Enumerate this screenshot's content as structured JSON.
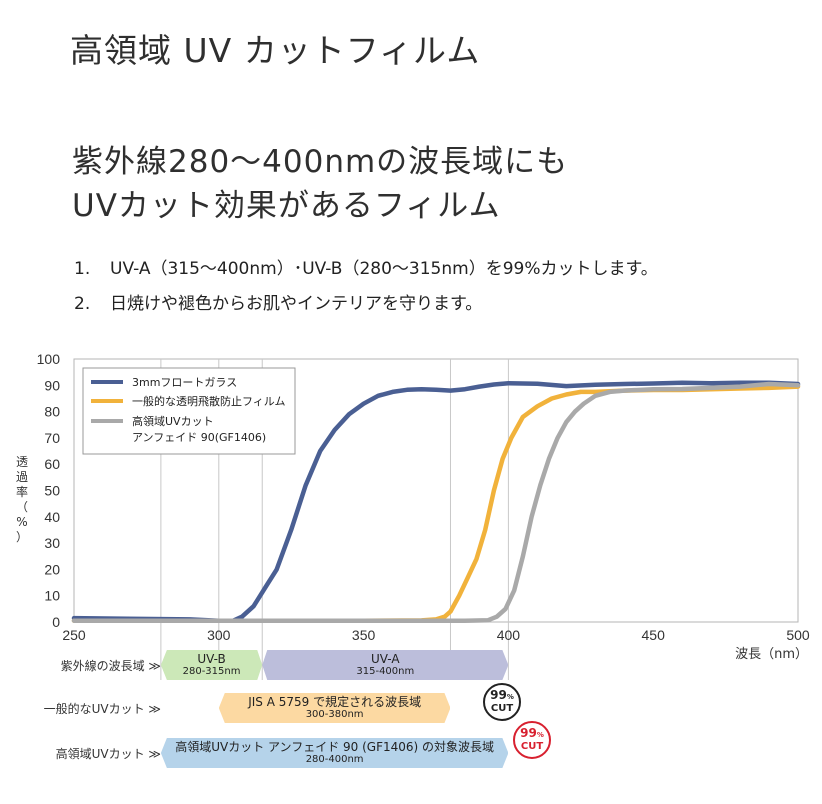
{
  "page": {
    "title": "高領域 UV カットフィルム",
    "subtitle_line1": "紫外線280〜400nmの波長域にも",
    "subtitle_line2": "UVカット効果があるフィルム",
    "points": [
      {
        "num": "1.",
        "text": "UV-A（315〜400nm）･UV-B（280〜315nm）を99%カットします。"
      },
      {
        "num": "2.",
        "text": "日焼けや褪色からお肌やインテリアを守ります。"
      }
    ]
  },
  "chart_data": {
    "type": "line",
    "xlabel": "波長（nm）",
    "ylabel": "透過率（%）",
    "xlim": [
      250,
      500
    ],
    "ylim": [
      0,
      100
    ],
    "x_ticks": [
      250,
      300,
      350,
      400,
      450,
      500
    ],
    "y_ticks": [
      0,
      10,
      20,
      30,
      40,
      50,
      60,
      70,
      80,
      90,
      100
    ],
    "grid": "vertical at 280, 300, 315, 380, 400",
    "legend_position": "top-left",
    "series": [
      {
        "name": "3mmフロートガラス",
        "color": "#4a5f93",
        "points": [
          [
            250,
            1.5
          ],
          [
            290,
            1
          ],
          [
            300,
            0.5
          ],
          [
            305,
            0.5
          ],
          [
            308,
            2
          ],
          [
            312,
            6
          ],
          [
            316,
            13
          ],
          [
            320,
            20
          ],
          [
            325,
            35
          ],
          [
            330,
            52
          ],
          [
            335,
            65
          ],
          [
            340,
            73
          ],
          [
            345,
            79
          ],
          [
            350,
            83
          ],
          [
            355,
            86
          ],
          [
            360,
            87.5
          ],
          [
            365,
            88.3
          ],
          [
            370,
            88.5
          ],
          [
            375,
            88.3
          ],
          [
            380,
            88
          ],
          [
            385,
            88.5
          ],
          [
            390,
            89.5
          ],
          [
            395,
            90.3
          ],
          [
            400,
            90.8
          ],
          [
            410,
            90.6
          ],
          [
            420,
            89.7
          ],
          [
            430,
            90.2
          ],
          [
            440,
            90.5
          ],
          [
            450,
            90.7
          ],
          [
            460,
            91
          ],
          [
            470,
            90.8
          ],
          [
            480,
            91
          ],
          [
            490,
            91
          ],
          [
            500,
            90.5
          ]
        ]
      },
      {
        "name": "一般的な透明飛散防止フィルム",
        "color": "#f1b23b",
        "points": [
          [
            250,
            0.5
          ],
          [
            300,
            0.5
          ],
          [
            350,
            0.5
          ],
          [
            370,
            0.6
          ],
          [
            375,
            1
          ],
          [
            378,
            2
          ],
          [
            380,
            4
          ],
          [
            383,
            10
          ],
          [
            386,
            17
          ],
          [
            389,
            24
          ],
          [
            392,
            35
          ],
          [
            395,
            50
          ],
          [
            398,
            62
          ],
          [
            401,
            70
          ],
          [
            405,
            78
          ],
          [
            410,
            82
          ],
          [
            415,
            85
          ],
          [
            420,
            86.5
          ],
          [
            425,
            87.5
          ],
          [
            430,
            87.5
          ],
          [
            440,
            88
          ],
          [
            450,
            88.2
          ],
          [
            460,
            88.2
          ],
          [
            470,
            88.5
          ],
          [
            480,
            88.8
          ],
          [
            490,
            89
          ],
          [
            500,
            89.5
          ]
        ]
      },
      {
        "name": "高領域UVカット アンフェイド 90(GF1406)",
        "color": "#a9a9a9",
        "points": [
          [
            250,
            0.5
          ],
          [
            300,
            0.5
          ],
          [
            350,
            0.5
          ],
          [
            385,
            0.5
          ],
          [
            393,
            0.7
          ],
          [
            396,
            2
          ],
          [
            399,
            5
          ],
          [
            402,
            12
          ],
          [
            405,
            25
          ],
          [
            408,
            40
          ],
          [
            411,
            52
          ],
          [
            414,
            62
          ],
          [
            417,
            70
          ],
          [
            420,
            76
          ],
          [
            423,
            80
          ],
          [
            426,
            83
          ],
          [
            430,
            86
          ],
          [
            435,
            87.5
          ],
          [
            440,
            88
          ],
          [
            450,
            88.5
          ],
          [
            460,
            88.6
          ],
          [
            470,
            89
          ],
          [
            480,
            89.5
          ],
          [
            490,
            90.5
          ],
          [
            500,
            90
          ]
        ]
      }
    ]
  },
  "bands": {
    "rows": [
      {
        "label": "紫外線の波長域 ≫"
      },
      {
        "label": "一般的なUVカット ≫"
      },
      {
        "label": "高領域UVカット ≫"
      }
    ],
    "uvb": {
      "title": "UV-B",
      "range": "280-315nm",
      "from": 280,
      "to": 315,
      "color": "#cce8b8"
    },
    "uva": {
      "title": "UV-A",
      "range": "315-400nm",
      "from": 315,
      "to": 400,
      "color": "#bcbedb"
    },
    "general": {
      "title": "JIS A 5759 で規定される波長域",
      "range": "300-380nm",
      "from": 300,
      "to": 380,
      "color": "#fcd9a2"
    },
    "high": {
      "title": "高領域UVカット アンフェイド 90 (GF1406) の対象波長域",
      "range": "280-400nm",
      "from": 280,
      "to": 400,
      "color": "#b5d3ea"
    },
    "badge_general": {
      "pct": "99",
      "unit": "%",
      "cut": "CUT",
      "color": "#222222"
    },
    "badge_high": {
      "pct": "99",
      "unit": "%",
      "cut": "CUT",
      "color": "#d8202f"
    }
  }
}
